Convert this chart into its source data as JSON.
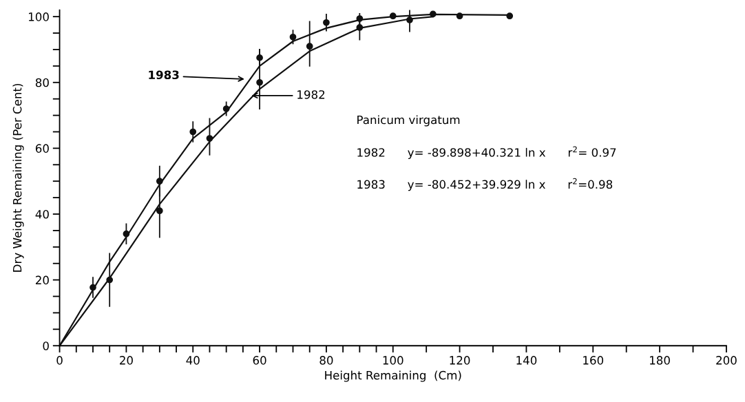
{
  "chart_data": {
    "type": "scatter",
    "xlabel": "Height Remaining  (Cm)",
    "ylabel": "Dry Weight Remaining (Per Cent)",
    "xlim": [
      0,
      200
    ],
    "ylim": [
      0,
      102
    ],
    "xticks": [
      0,
      {
        "value": 5,
        "label": null
      },
      {
        "value": 10,
        "label": null
      },
      {
        "value": 15,
        "label": null
      },
      20,
      {
        "value": 25,
        "label": null
      },
      {
        "value": 30,
        "label": null
      },
      {
        "value": 35,
        "label": null
      },
      40,
      {
        "value": 45,
        "label": null
      },
      {
        "value": 50,
        "label": null
      },
      {
        "value": 55,
        "label": null
      },
      60,
      {
        "value": 65,
        "label": null
      },
      {
        "value": 70,
        "label": null
      },
      {
        "value": 75,
        "label": null
      },
      80,
      {
        "value": 85,
        "label": null
      },
      {
        "value": 90,
        "label": null
      },
      {
        "value": 95,
        "label": null
      },
      100,
      {
        "value": 110,
        "label": null
      },
      120,
      {
        "value": 130,
        "label": null
      },
      140,
      {
        "value": 150,
        "label": null
      },
      160,
      {
        "value": 170,
        "label": null
      },
      180,
      {
        "value": 190,
        "label": null
      },
      200
    ],
    "yticks": [
      0,
      {
        "value": 5,
        "label": null
      },
      {
        "value": 10,
        "label": null
      },
      {
        "value": 15,
        "label": null
      },
      20,
      {
        "value": 25,
        "label": null
      },
      {
        "value": 30,
        "label": null
      },
      {
        "value": 35,
        "label": null
      },
      40,
      {
        "value": 45,
        "label": null
      },
      {
        "value": 50,
        "label": null
      },
      {
        "value": 55,
        "label": null
      },
      60,
      {
        "value": 65,
        "label": null
      },
      {
        "value": 70,
        "label": null
      },
      {
        "value": 75,
        "label": null
      },
      80,
      {
        "value": 85,
        "label": null
      },
      {
        "value": 90,
        "label": null
      },
      {
        "value": 95,
        "label": null
      },
      100
    ],
    "grid": false,
    "legend": false,
    "marker": "circle",
    "series": [
      {
        "color": "#111111",
        "x": [
          10,
          20,
          30,
          40,
          50,
          60,
          70,
          80,
          90,
          100,
          112,
          120,
          135
        ],
        "values": [
          17.7,
          34,
          50,
          65,
          72,
          87.5,
          93.8,
          98.2,
          99.4,
          100.2,
          100.8,
          100.2,
          100.2
        ],
        "errors": [
          3,
          3,
          4.5,
          3,
          2,
          2.5,
          2,
          2.5,
          1.5,
          null,
          null,
          null,
          null
        ]
      },
      {
        "color": "#111111",
        "x": [
          15,
          30,
          45,
          60,
          75,
          90,
          105
        ],
        "values": [
          20,
          41,
          63,
          80,
          91,
          96.7,
          99
        ],
        "errors": [
          [
            12,
            28
          ],
          [
            33,
            48
          ],
          [
            58,
            69
          ],
          [
            72,
            90
          ],
          [
            85,
            98.5
          ],
          [
            93,
            99
          ],
          [
            95.5,
            102
          ]
        ]
      },
      {
        "type": "line",
        "color": "#111111",
        "marker": "none",
        "x": [
          0,
          10,
          15,
          20,
          30,
          40,
          50,
          55,
          60,
          70,
          80,
          90,
          100,
          112,
          135
        ],
        "values": [
          0,
          17,
          25.5,
          33,
          49,
          63,
          71,
          78,
          85,
          92.5,
          96.5,
          99,
          100,
          100.7,
          100.5
        ]
      },
      {
        "type": "line",
        "color": "#111111",
        "marker": "none",
        "x": [
          0,
          15,
          30,
          45,
          60,
          75,
          90,
          105,
          112
        ],
        "values": [
          0,
          20.5,
          43,
          62,
          78,
          89.5,
          96.5,
          99.3,
          100
        ]
      }
    ],
    "annotations": [
      {
        "text": "1983",
        "x": 56,
        "y": 81
      },
      {
        "text": "1982",
        "x": 57,
        "y": 76
      },
      "Panicum virgatum",
      "1982      y= -89.898+40.321 ln x      r$^{2}$= 0.97",
      "1983      y= -80.452+39.929 ln x      r$^{2}$=0.98"
    ]
  }
}
